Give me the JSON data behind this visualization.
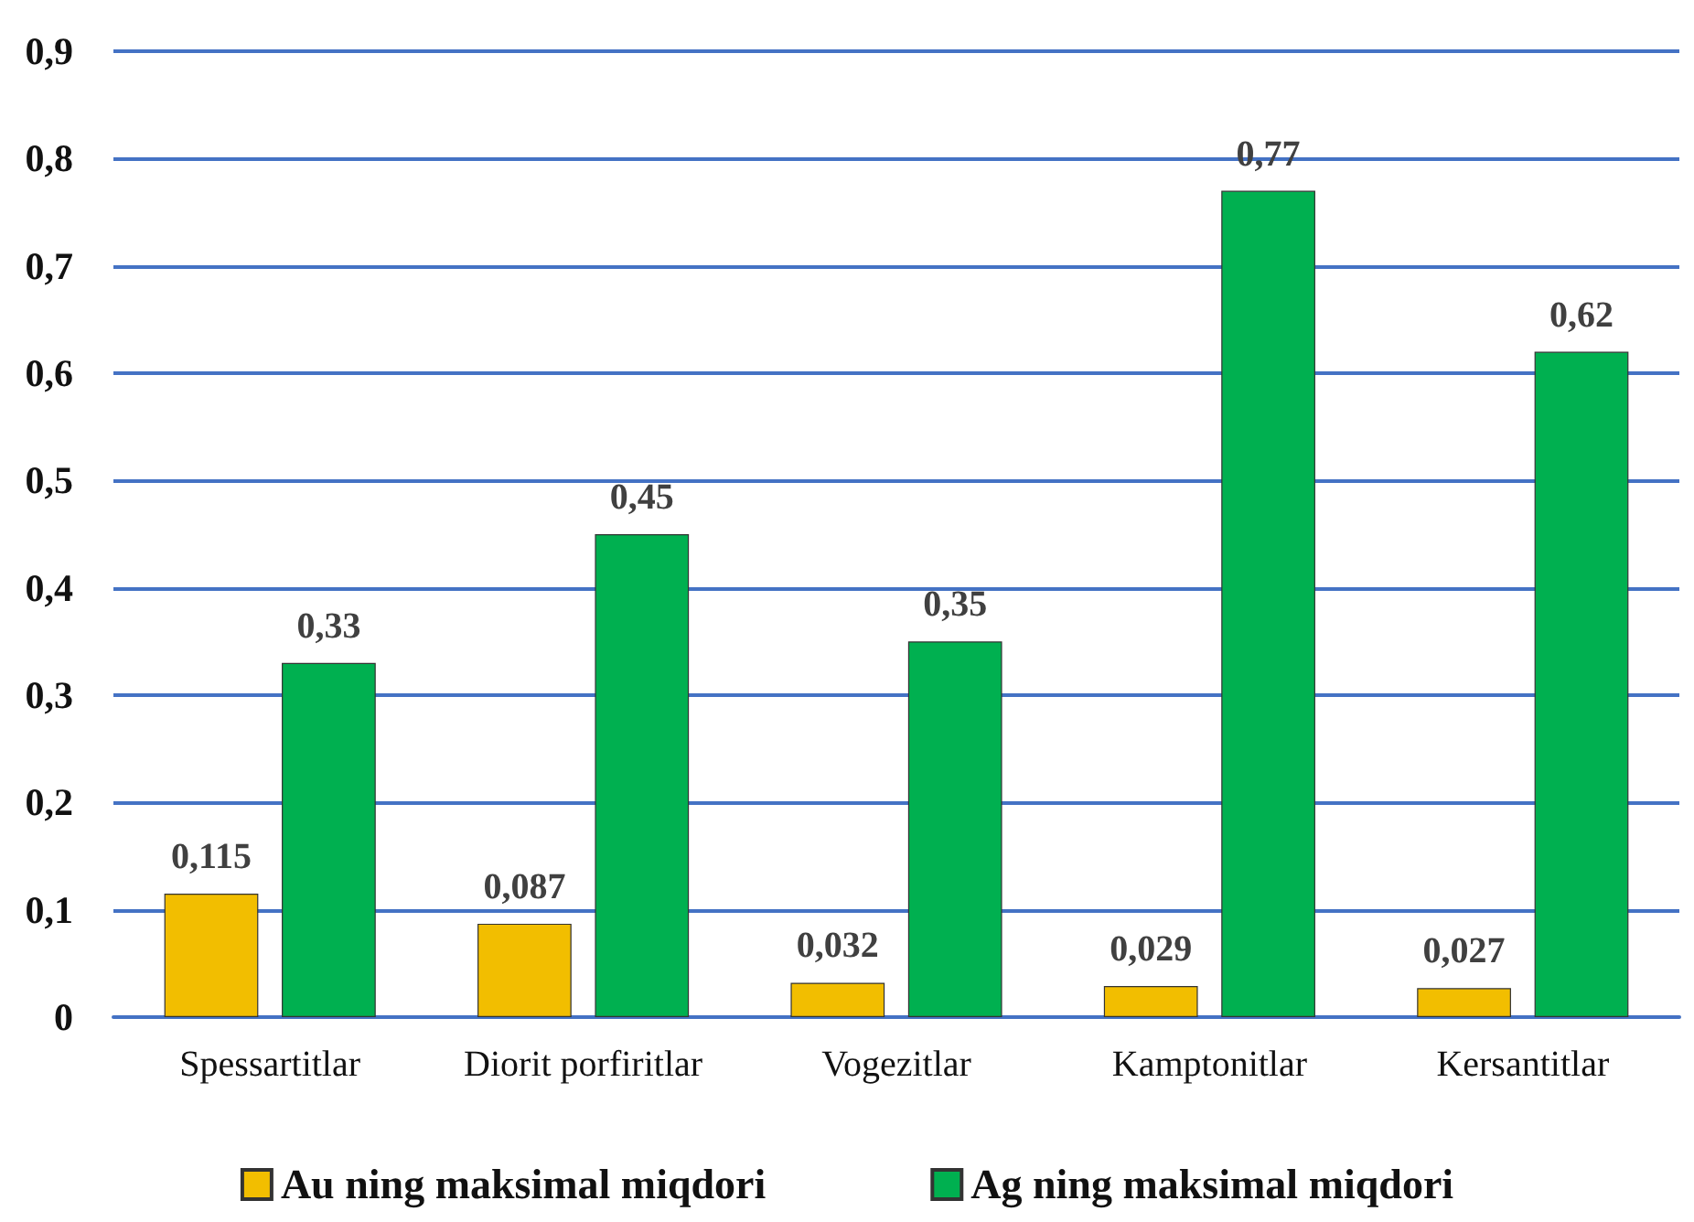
{
  "chart_data": {
    "type": "bar",
    "categories": [
      "Spessartitlar",
      "Diorit porfiritlar",
      "Vogezitlar",
      "Kamptonitlar",
      "Kersantitlar"
    ],
    "series": [
      {
        "name": "Au ning maksimal miqdori",
        "color": "#f2be00",
        "values": [
          0.115,
          0.087,
          0.032,
          0.029,
          0.027
        ],
        "value_labels": [
          "0,115",
          "0,087",
          "0,032",
          "0,029",
          "0,027"
        ]
      },
      {
        "name": "Ag ning maksimal miqdori",
        "color": "#00b050",
        "values": [
          0.33,
          0.45,
          0.35,
          0.77,
          0.62
        ],
        "value_labels": [
          "0,33",
          "0,45",
          "0,35",
          "0,77",
          "0,62"
        ]
      }
    ],
    "ylim": [
      0,
      0.9
    ],
    "yticks": [
      {
        "value": 0,
        "label": "0"
      },
      {
        "value": 0.1,
        "label": "0,1"
      },
      {
        "value": 0.2,
        "label": "0,2"
      },
      {
        "value": 0.3,
        "label": "0,3"
      },
      {
        "value": 0.4,
        "label": "0,4"
      },
      {
        "value": 0.5,
        "label": "0,5"
      },
      {
        "value": 0.6,
        "label": "0,6"
      },
      {
        "value": 0.7,
        "label": "0,7"
      },
      {
        "value": 0.8,
        "label": "0,8"
      },
      {
        "value": 0.9,
        "label": "0,9"
      }
    ],
    "grid": "y",
    "legend": "bottom"
  }
}
